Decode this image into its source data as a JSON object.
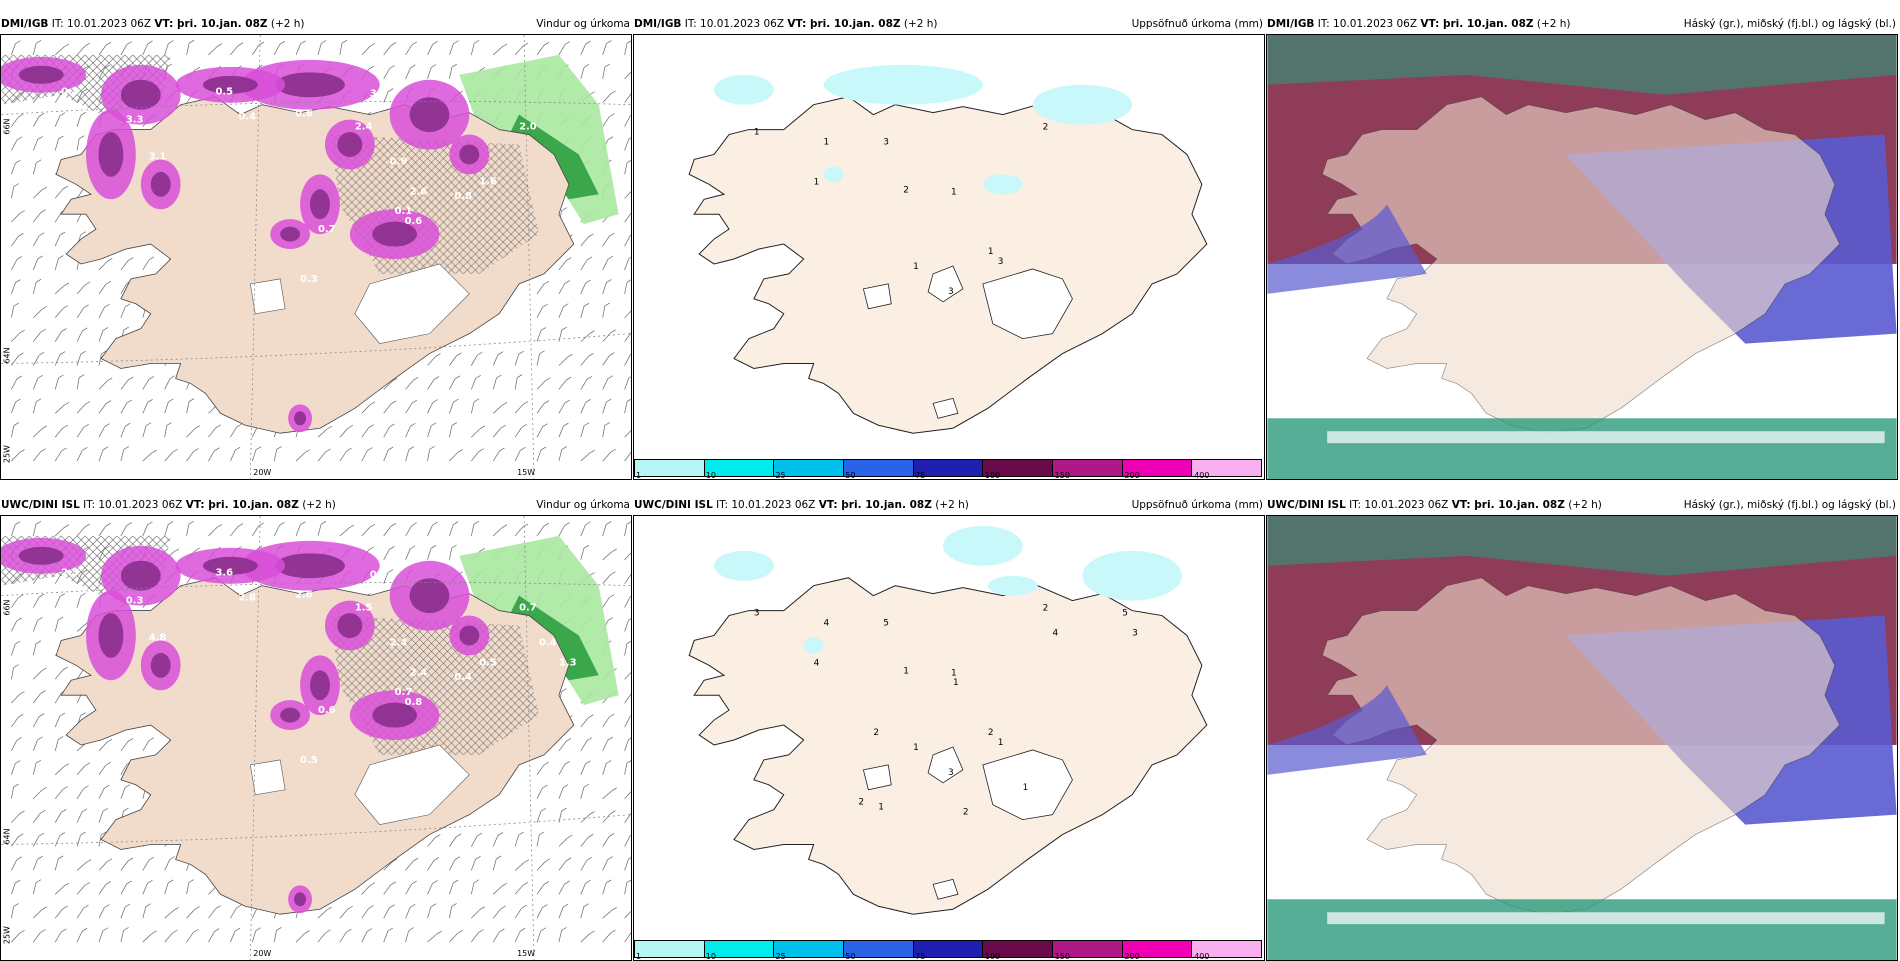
{
  "panels": [
    {
      "src": "DMI/IGB",
      "it": "IT: 10.01.2023 06Z",
      "vt": "VT: þri. 10.jan. 08Z",
      "lead": "(+2 h)",
      "title": "Vindur og úrkoma"
    },
    {
      "src": "DMI/IGB",
      "it": "IT: 10.01.2023 06Z",
      "vt": "VT: þri. 10.jan. 08Z",
      "lead": "(+2 h)",
      "title": "Uppsöfnuð úrkoma (mm)"
    },
    {
      "src": "DMI/IGB",
      "it": "IT: 10.01.2023 06Z",
      "vt": "VT: þri. 10.jan. 08Z",
      "lead": "(+2 h)",
      "title": "Háský (gr.), miðský (fj.bl.) og lágský (bl.)"
    },
    {
      "src": "UWC/DINI ISL",
      "it": "IT: 10.01.2023 06Z",
      "vt": "VT: þri. 10.jan. 08Z",
      "lead": "(+2 h)",
      "title": "Vindur og úrkoma"
    },
    {
      "src": "UWC/DINI ISL",
      "it": "IT: 10.01.2023 06Z",
      "vt": "VT: þri. 10.jan. 08Z",
      "lead": "(+2 h)",
      "title": "Uppsöfnuð úrkoma (mm)"
    },
    {
      "src": "UWC/DINI ISL",
      "it": "IT: 10.01.2023 06Z",
      "vt": "VT: þri. 10.jan. 08Z",
      "lead": "(+2 h)",
      "title": "Háský (gr.), miðský (fj.bl.) og lágský (bl.)"
    }
  ],
  "axis": {
    "lon_20": "20W",
    "lon_15": "15W",
    "lon_25": "25W",
    "lat_66": "66N",
    "lat_64": "64N"
  },
  "colorbar": {
    "labels": [
      "1",
      "10",
      "25",
      "50",
      "75",
      "100",
      "150",
      "200",
      "400"
    ],
    "colors": [
      "#b8f6f6",
      "#00ecec",
      "#00c0ec",
      "#2a62e8",
      "#2020b0",
      "#6a0a4a",
      "#b01888",
      "#f000b4",
      "#f8b0f0"
    ]
  },
  "wind_labels_top": [
    "0.4",
    "3.3",
    "3.1",
    "0.5",
    "0.4",
    "0.6",
    "2.4",
    "3.7",
    "0.9",
    "2.6",
    "0.1",
    "0.6",
    "0.7",
    "0.3",
    "0.8",
    "1.6",
    "2.0",
    "0.8"
  ],
  "wind_labels_bottom": [
    "2.5",
    "0.3",
    "4.8",
    "3.6",
    "2.8",
    "2.6",
    "1.5",
    "0.3",
    "2.4",
    "2.4",
    "0.7",
    "0.8",
    "0.6",
    "0.5",
    "0.4",
    "0.5",
    "0.7",
    "0.6",
    "1.3",
    "0.4"
  ],
  "precip_labels_top": [
    "1",
    "1",
    "3",
    "1",
    "2",
    "1",
    "2",
    "1",
    "3",
    "1",
    "3"
  ],
  "precip_labels_bottom": [
    "3",
    "4",
    "5",
    "4",
    "1",
    "1",
    "2",
    "2",
    "1",
    "1",
    "3",
    "5",
    "3",
    "4",
    "1",
    "2",
    "2",
    "1",
    "1",
    "2"
  ],
  "colors": {
    "land": "#f1dccc",
    "land_light": "#fbeee3",
    "purple": "#d94fd8",
    "purple_dark": "#8a2f8c",
    "green": "#3aa84a",
    "green_light": "#a8e8a0",
    "cyan": "#c8f8fa",
    "cloud_high": "#7a1a3a",
    "cloud_mid": "#5a5ad0",
    "cloud_low": "#2a9a7a"
  }
}
